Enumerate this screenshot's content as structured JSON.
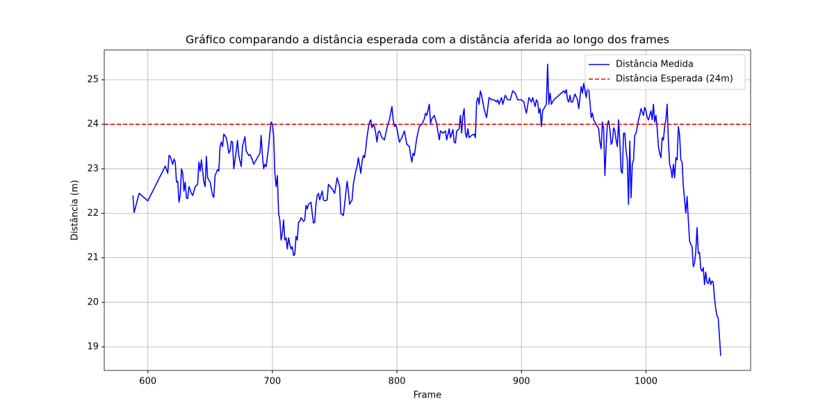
{
  "chart_data": {
    "type": "line",
    "title": "Gráfico comparando a distância esperada com a distância aferida ao longo dos frames",
    "x_label": "Frame",
    "y_label": "Distância (m)",
    "x": [
      588,
      589,
      593,
      600,
      614,
      616,
      617,
      618,
      620,
      621,
      622,
      623,
      624,
      625,
      626,
      627,
      628,
      629,
      630,
      631,
      632,
      633,
      635,
      636,
      638,
      640,
      641,
      642,
      643,
      645,
      646,
      647,
      648,
      650,
      652,
      653,
      654,
      656,
      657,
      658,
      659,
      660,
      661,
      663,
      664,
      665,
      666,
      667,
      668,
      669,
      670,
      671,
      672,
      673,
      675,
      676,
      677,
      678,
      679,
      681,
      682,
      684,
      685,
      687,
      690,
      691,
      692,
      693,
      694,
      695,
      697,
      698,
      699,
      700,
      701,
      702,
      703,
      704,
      705,
      706,
      707,
      708,
      709,
      710,
      711,
      712,
      713,
      714,
      715,
      716,
      717,
      718,
      719,
      720,
      721,
      722,
      723,
      725,
      726,
      727,
      728,
      729,
      731,
      732,
      733,
      734,
      735,
      736,
      737,
      738,
      740,
      741,
      742,
      744,
      745,
      746,
      748,
      750,
      752,
      754,
      755,
      757,
      758,
      760,
      761,
      762,
      764,
      765,
      766,
      767,
      768,
      769,
      770,
      771,
      772,
      773,
      774,
      775,
      776,
      777,
      778,
      779,
      780,
      781,
      782,
      783,
      784,
      785,
      786,
      788,
      790,
      792,
      794,
      796,
      797,
      798,
      799,
      800,
      802,
      804,
      806,
      808,
      810,
      811,
      812,
      813,
      814,
      816,
      818,
      820,
      822,
      823,
      824,
      826,
      827,
      828,
      830,
      832,
      834,
      835,
      837,
      839,
      840,
      842,
      843,
      845,
      846,
      847,
      848,
      850,
      851,
      852,
      853,
      854,
      855,
      856,
      857,
      858,
      860,
      862,
      863,
      864,
      865,
      866,
      867,
      868,
      870,
      871,
      872,
      874,
      876,
      878,
      880,
      881,
      882,
      884,
      885,
      887,
      889,
      891,
      893,
      895,
      897,
      900,
      902,
      903,
      904,
      906,
      908,
      909,
      911,
      912,
      913,
      914,
      915,
      916,
      917,
      919,
      920,
      921,
      922,
      923,
      924,
      926,
      928,
      930,
      932,
      934,
      935,
      936,
      937,
      938,
      939,
      940,
      941,
      943,
      945,
      946,
      947,
      948,
      949,
      950,
      951,
      952,
      953,
      954,
      955,
      956,
      957,
      958,
      960,
      962,
      963,
      964,
      965,
      966,
      967,
      968,
      969,
      970,
      971,
      972,
      973,
      974,
      975,
      976,
      977,
      978,
      979,
      980,
      981,
      982,
      983,
      984,
      985,
      986,
      987,
      988,
      989,
      990,
      991,
      992,
      993,
      994,
      995,
      996,
      998,
      999,
      1000,
      1001,
      1002,
      1003,
      1004,
      1005,
      1006,
      1007,
      1008,
      1009,
      1010,
      1011,
      1012,
      1013,
      1014,
      1015,
      1016,
      1017,
      1018,
      1019,
      1020,
      1021,
      1022,
      1023,
      1024,
      1025,
      1026,
      1027,
      1028,
      1029,
      1030,
      1031,
      1032,
      1033,
      1034,
      1035,
      1036,
      1037,
      1038,
      1039,
      1040,
      1041,
      1042,
      1043,
      1044,
      1045,
      1046,
      1047,
      1048,
      1049,
      1050,
      1051,
      1052,
      1053,
      1054,
      1055,
      1056,
      1057,
      1058,
      1060
    ],
    "series": [
      {
        "name": "Distância Medida",
        "color": "#0000ff",
        "values": [
          22.4,
          22.02,
          22.45,
          22.28,
          23.06,
          22.9,
          23.3,
          23.28,
          23.1,
          23.22,
          23.15,
          22.7,
          22.72,
          22.25,
          22.4,
          23.0,
          22.9,
          22.5,
          22.7,
          22.35,
          22.33,
          22.6,
          22.45,
          22.4,
          22.6,
          22.65,
          23.15,
          22.95,
          23.2,
          22.7,
          22.6,
          23.28,
          22.8,
          22.7,
          22.4,
          22.36,
          22.85,
          22.98,
          22.95,
          23.5,
          23.6,
          23.5,
          23.78,
          23.7,
          23.55,
          23.35,
          23.4,
          23.62,
          23.6,
          23.0,
          23.2,
          23.4,
          23.64,
          23.3,
          23.05,
          23.5,
          23.62,
          23.72,
          23.4,
          23.3,
          23.32,
          23.2,
          23.1,
          23.2,
          23.35,
          23.75,
          23.3,
          23.0,
          23.1,
          23.05,
          23.5,
          23.8,
          24.05,
          24.0,
          23.75,
          22.9,
          22.6,
          22.85,
          22.0,
          21.85,
          21.4,
          21.55,
          21.85,
          21.4,
          21.45,
          21.2,
          21.45,
          21.3,
          21.2,
          21.25,
          21.05,
          21.08,
          21.48,
          21.4,
          21.8,
          21.82,
          21.9,
          21.82,
          21.85,
          22.18,
          22.1,
          22.2,
          22.25,
          22.0,
          21.78,
          21.8,
          22.2,
          22.4,
          22.45,
          22.3,
          22.5,
          22.3,
          22.28,
          22.3,
          22.65,
          22.62,
          22.55,
          22.45,
          22.8,
          22.6,
          22.0,
          21.95,
          22.2,
          22.72,
          22.5,
          22.2,
          22.3,
          22.65,
          22.8,
          22.95,
          23.05,
          23.25,
          23.08,
          22.9,
          23.15,
          23.3,
          23.25,
          23.45,
          23.72,
          23.9,
          24.05,
          24.1,
          23.92,
          24.0,
          23.95,
          23.8,
          23.6,
          23.82,
          23.85,
          23.7,
          23.65,
          23.92,
          24.1,
          24.4,
          24.1,
          23.95,
          24.0,
          23.9,
          23.6,
          23.7,
          23.85,
          23.55,
          23.5,
          23.3,
          23.15,
          23.35,
          23.3,
          23.7,
          23.95,
          24.0,
          24.12,
          24.25,
          24.2,
          24.45,
          24.02,
          24.12,
          24.2,
          24.0,
          23.65,
          23.85,
          23.8,
          23.85,
          23.65,
          23.9,
          23.7,
          23.88,
          23.6,
          23.58,
          23.85,
          23.9,
          24.2,
          23.8,
          24.2,
          24.35,
          23.8,
          23.7,
          23.9,
          23.7,
          23.75,
          23.78,
          23.7,
          24.5,
          24.6,
          24.45,
          24.75,
          24.65,
          24.35,
          24.25,
          24.15,
          24.6,
          24.55,
          24.55,
          24.5,
          24.55,
          24.45,
          24.6,
          24.45,
          24.65,
          24.55,
          24.55,
          24.75,
          24.7,
          24.55,
          24.55,
          24.5,
          24.35,
          24.25,
          24.6,
          24.5,
          24.6,
          24.4,
          24.55,
          24.5,
          24.25,
          24.35,
          23.95,
          24.3,
          24.4,
          24.45,
          25.35,
          24.45,
          24.7,
          24.45,
          24.55,
          24.6,
          24.65,
          24.7,
          24.75,
          24.7,
          24.78,
          24.55,
          24.5,
          24.65,
          24.5,
          24.5,
          24.68,
          24.55,
          24.35,
          24.6,
          24.85,
          24.7,
          24.92,
          24.75,
          24.6,
          24.82,
          24.8,
          24.5,
          24.15,
          24.25,
          24.1,
          24.0,
          23.9,
          23.6,
          23.45,
          24.05,
          23.9,
          22.85,
          23.5,
          24.0,
          24.08,
          23.9,
          23.55,
          23.6,
          23.92,
          23.85,
          23.65,
          23.5,
          24.1,
          23.6,
          22.95,
          22.9,
          23.8,
          23.8,
          23.4,
          23.2,
          22.2,
          23.62,
          22.35,
          23.1,
          23.2,
          23.75,
          23.8,
          23.95,
          24.1,
          24.2,
          24.35,
          24.2,
          24.38,
          24.3,
          24.15,
          24.1,
          24.2,
          24.3,
          24.1,
          24.45,
          24.05,
          24.2,
          23.9,
          23.5,
          23.35,
          23.25,
          23.7,
          23.65,
          23.95,
          24.1,
          24.45,
          23.6,
          23.1,
          23.0,
          22.8,
          23.1,
          22.8,
          23.25,
          23.2,
          23.95,
          23.75,
          23.2,
          23.15,
          22.6,
          22.3,
          22.0,
          22.38,
          21.85,
          21.38,
          21.3,
          21.25,
          20.8,
          20.88,
          21.15,
          21.68,
          21.1,
          21.12,
          20.75,
          20.7,
          20.78,
          20.4,
          20.68,
          20.45,
          20.42,
          20.55,
          20.4,
          20.48,
          20.45,
          20.1,
          19.85,
          19.7,
          19.65,
          18.8
        ]
      }
    ],
    "reference_lines": [
      {
        "name": "Distância Esperada (24m)",
        "color": "#ff0000",
        "value": 24,
        "dashed": true
      }
    ],
    "xlim": [
      565,
      1084
    ],
    "ylim": [
      18.47,
      25.67
    ],
    "xticks": [
      600,
      700,
      800,
      900,
      1000
    ],
    "yticks": [
      19,
      20,
      21,
      22,
      23,
      24,
      25
    ],
    "grid": true,
    "legend": "upper-right"
  }
}
